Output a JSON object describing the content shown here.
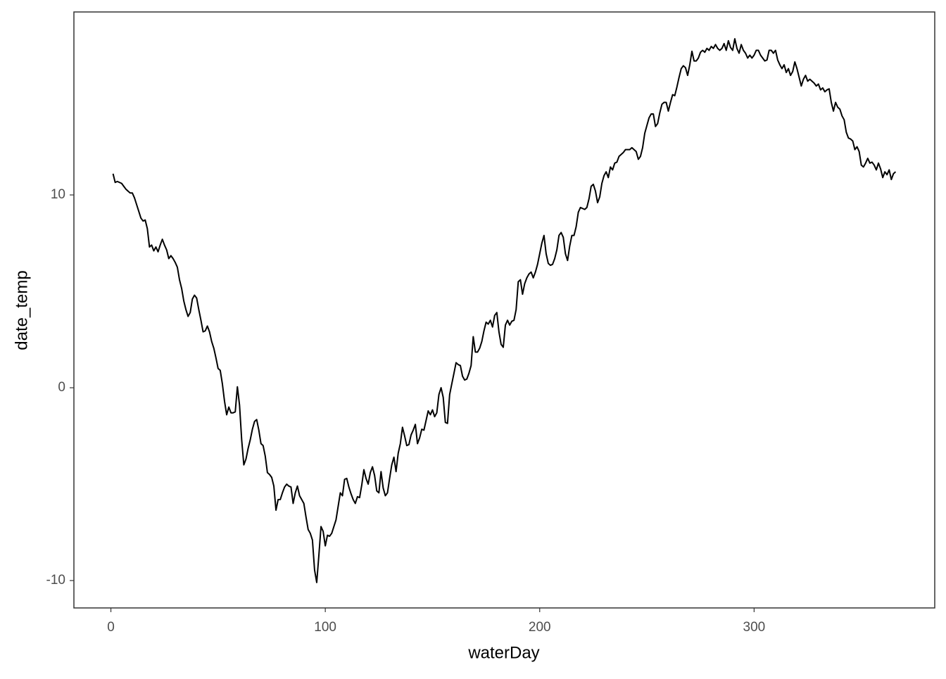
{
  "chart_data": {
    "type": "line",
    "x_label": "waterDay",
    "y_label": "date_temp",
    "color": "#000000",
    "grid": false,
    "xlim": [
      -17.25,
      384.25
    ],
    "xticks": [
      0,
      100,
      200,
      300
    ],
    "ylim": [
      -11.42,
      19.49
    ],
    "yticks": [
      -10,
      0,
      10
    ],
    "x": [
      1,
      2,
      3,
      4,
      5,
      6,
      7,
      8,
      9,
      10,
      11,
      12,
      13,
      14,
      15,
      16,
      17,
      18,
      19,
      20,
      21,
      22,
      23,
      24,
      25,
      26,
      27,
      28,
      29,
      30,
      31,
      32,
      33,
      34,
      35,
      36,
      37,
      38,
      39,
      40,
      41,
      42,
      43,
      44,
      45,
      46,
      47,
      48,
      49,
      50,
      51,
      52,
      53,
      54,
      55,
      56,
      57,
      58,
      59,
      60,
      61,
      62,
      63,
      64,
      65,
      66,
      67,
      68,
      69,
      70,
      71,
      72,
      73,
      74,
      75,
      76,
      77,
      78,
      79,
      80,
      81,
      82,
      83,
      84,
      85,
      86,
      87,
      88,
      89,
      90,
      91,
      92,
      93,
      94,
      95,
      96,
      97,
      98,
      99,
      100,
      101,
      102,
      103,
      104,
      105,
      106,
      107,
      108,
      109,
      110,
      111,
      112,
      113,
      114,
      115,
      116,
      117,
      118,
      119,
      120,
      121,
      122,
      123,
      124,
      125,
      126,
      127,
      128,
      129,
      130,
      131,
      132,
      133,
      134,
      135,
      136,
      137,
      138,
      139,
      140,
      141,
      142,
      143,
      144,
      145,
      146,
      147,
      148,
      149,
      150,
      151,
      152,
      153,
      154,
      155,
      156,
      157,
      158,
      159,
      160,
      161,
      162,
      163,
      164,
      165,
      166,
      167,
      168,
      169,
      170,
      171,
      172,
      173,
      174,
      175,
      176,
      177,
      178,
      179,
      180,
      181,
      182,
      183,
      184,
      185,
      186,
      187,
      188,
      189,
      190,
      191,
      192,
      193,
      194,
      195,
      196,
      197,
      198,
      199,
      200,
      201,
      202,
      203,
      204,
      205,
      206,
      207,
      208,
      209,
      210,
      211,
      212,
      213,
      214,
      215,
      216,
      217,
      218,
      219,
      220,
      221,
      222,
      223,
      224,
      225,
      226,
      227,
      228,
      229,
      230,
      231,
      232,
      233,
      234,
      235,
      236,
      237,
      238,
      239,
      240,
      241,
      242,
      243,
      244,
      245,
      246,
      247,
      248,
      249,
      250,
      251,
      252,
      253,
      254,
      255,
      256,
      257,
      258,
      259,
      260,
      261,
      262,
      263,
      264,
      265,
      266,
      267,
      268,
      269,
      270,
      271,
      272,
      273,
      274,
      275,
      276,
      277,
      278,
      279,
      280,
      281,
      282,
      283,
      284,
      285,
      286,
      287,
      288,
      289,
      290,
      291,
      292,
      293,
      294,
      295,
      296,
      297,
      298,
      299,
      300,
      301,
      302,
      303,
      304,
      305,
      306,
      307,
      308,
      309,
      310,
      311,
      312,
      313,
      314,
      315,
      316,
      317,
      318,
      319,
      320,
      321,
      322,
      323,
      324,
      325,
      326,
      327,
      328,
      329,
      330,
      331,
      332,
      333,
      334,
      335,
      336,
      337,
      338,
      339,
      340,
      341,
      342,
      343,
      344,
      345,
      346,
      347,
      348,
      349,
      350,
      351,
      352,
      353,
      354,
      355,
      356,
      357,
      358,
      359,
      360,
      361,
      362,
      363,
      364,
      365,
      366
    ],
    "values": [
      11.1,
      10.65,
      10.7,
      10.65,
      10.6,
      10.45,
      10.3,
      10.2,
      10.1,
      10.1,
      9.85,
      9.5,
      9.15,
      8.8,
      8.65,
      8.7,
      8.25,
      7.3,
      7.4,
      7.1,
      7.3,
      7.05,
      7.4,
      7.7,
      7.4,
      7.15,
      6.7,
      6.85,
      6.7,
      6.5,
      6.25,
      5.6,
      5.15,
      4.5,
      4.05,
      3.7,
      3.9,
      4.6,
      4.8,
      4.65,
      4.05,
      3.5,
      2.9,
      2.95,
      3.2,
      2.9,
      2.4,
      2.05,
      1.55,
      1.0,
      0.9,
      0.2,
      -0.7,
      -1.4,
      -1.0,
      -1.3,
      -1.3,
      -1.25,
      0.05,
      -0.9,
      -2.7,
      -4.0,
      -3.7,
      -3.15,
      -2.7,
      -2.15,
      -1.75,
      -1.65,
      -2.2,
      -2.9,
      -3.0,
      -3.55,
      -4.4,
      -4.5,
      -4.65,
      -5.1,
      -6.35,
      -5.8,
      -5.8,
      -5.45,
      -5.15,
      -5.0,
      -5.1,
      -5.15,
      -6.0,
      -5.45,
      -5.1,
      -5.6,
      -5.8,
      -6.0,
      -6.7,
      -7.35,
      -7.55,
      -7.9,
      -9.45,
      -10.1,
      -8.7,
      -7.2,
      -7.45,
      -8.2,
      -7.65,
      -7.7,
      -7.55,
      -7.2,
      -6.85,
      -6.15,
      -5.45,
      -5.6,
      -4.75,
      -4.7,
      -5.15,
      -5.5,
      -5.8,
      -6.0,
      -5.65,
      -5.7,
      -5.05,
      -4.25,
      -4.7,
      -5.0,
      -4.4,
      -4.1,
      -4.55,
      -5.35,
      -5.45,
      -4.35,
      -5.2,
      -5.6,
      -5.45,
      -4.7,
      -4.0,
      -3.6,
      -4.35,
      -3.4,
      -2.9,
      -2.05,
      -2.5,
      -3.0,
      -2.95,
      -2.45,
      -2.2,
      -1.9,
      -2.9,
      -2.6,
      -2.15,
      -2.2,
      -1.7,
      -1.2,
      -1.4,
      -1.15,
      -1.5,
      -1.3,
      -0.35,
      0.0,
      -0.5,
      -1.8,
      -1.85,
      -0.35,
      0.2,
      0.75,
      1.3,
      1.2,
      1.15,
      0.6,
      0.4,
      0.45,
      0.75,
      1.15,
      2.65,
      1.85,
      1.85,
      2.05,
      2.4,
      2.95,
      3.4,
      3.3,
      3.5,
      3.15,
      3.75,
      3.9,
      2.9,
      2.25,
      2.1,
      3.25,
      3.5,
      3.25,
      3.45,
      3.5,
      4.05,
      5.5,
      5.6,
      4.85,
      5.4,
      5.7,
      5.9,
      6.0,
      5.7,
      6.0,
      6.4,
      6.95,
      7.5,
      7.9,
      6.95,
      6.45,
      6.35,
      6.4,
      6.7,
      7.15,
      7.9,
      8.05,
      7.8,
      6.95,
      6.6,
      7.35,
      7.9,
      7.9,
      8.35,
      9.1,
      9.35,
      9.3,
      9.25,
      9.35,
      9.8,
      10.45,
      10.55,
      10.2,
      9.6,
      9.9,
      10.6,
      11.0,
      11.2,
      10.9,
      11.45,
      11.3,
      11.65,
      11.7,
      12.0,
      12.1,
      12.2,
      12.35,
      12.35,
      12.35,
      12.45,
      12.35,
      12.25,
      11.85,
      12.0,
      12.45,
      13.2,
      13.6,
      14.0,
      14.2,
      14.2,
      13.55,
      13.7,
      14.25,
      14.7,
      14.8,
      14.8,
      14.35,
      14.8,
      15.2,
      15.15,
      15.6,
      16.1,
      16.55,
      16.7,
      16.6,
      16.2,
      16.75,
      17.45,
      16.95,
      16.95,
      17.1,
      17.4,
      17.5,
      17.4,
      17.6,
      17.5,
      17.7,
      17.6,
      17.8,
      17.6,
      17.5,
      17.6,
      17.85,
      17.5,
      18.0,
      17.65,
      17.5,
      18.1,
      17.6,
      17.35,
      17.8,
      17.5,
      17.35,
      17.1,
      17.25,
      17.1,
      17.25,
      17.5,
      17.5,
      17.25,
      17.1,
      16.95,
      17.0,
      17.5,
      17.5,
      17.35,
      17.5,
      17.0,
      16.75,
      16.55,
      16.75,
      16.35,
      16.55,
      16.2,
      16.4,
      16.9,
      16.55,
      16.1,
      15.65,
      16.0,
      16.2,
      15.9,
      16.0,
      15.9,
      15.8,
      15.65,
      15.75,
      15.45,
      15.55,
      15.35,
      15.45,
      15.5,
      14.8,
      14.35,
      14.8,
      14.55,
      14.45,
      14.1,
      13.9,
      13.25,
      12.95,
      12.9,
      12.8,
      12.35,
      12.5,
      12.25,
      11.55,
      11.45,
      11.65,
      11.9,
      11.65,
      11.7,
      11.55,
      11.3,
      11.65,
      11.35,
      10.9,
      11.2,
      11.05,
      11.3,
      10.8,
      11.1,
      11.2
    ]
  }
}
